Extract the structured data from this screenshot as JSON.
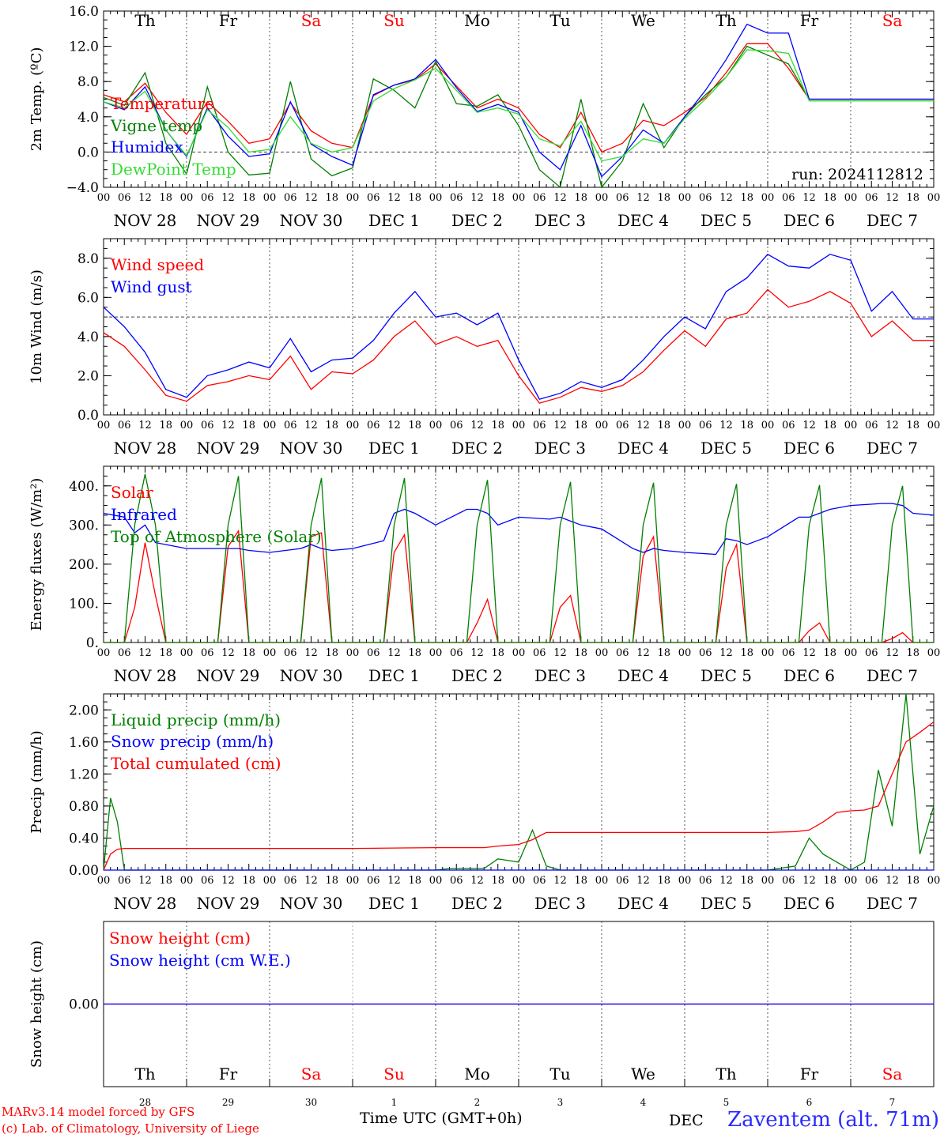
{
  "credits": {
    "line1": "MARv3.14 model forced by GFS",
    "line2": "(c) Lab. of Climatology, University of Liege"
  },
  "x_title": "Time UTC (GMT+0h)",
  "location": "Zaventem (alt. 71m)",
  "run_label": "run: 2024112812",
  "hour_ticks": [
    "00",
    "06",
    "12",
    "18"
  ],
  "date_labels": [
    "NOV 28",
    "NOV 29",
    "NOV 30",
    "DEC  1",
    "DEC  2",
    "DEC  3",
    "DEC  4",
    "DEC  5",
    "DEC  6",
    "DEC  7"
  ],
  "weekdays": [
    {
      "label": "Th",
      "weekend": false
    },
    {
      "label": "Fr",
      "weekend": false
    },
    {
      "label": "Sa",
      "weekend": true
    },
    {
      "label": "Su",
      "weekend": true
    },
    {
      "label": "Mo",
      "weekend": false
    },
    {
      "label": "Tu",
      "weekend": false
    },
    {
      "label": "We",
      "weekend": false
    },
    {
      "label": "Th",
      "weekend": false
    },
    {
      "label": "Fr",
      "weekend": false
    },
    {
      "label": "Sa",
      "weekend": true
    }
  ],
  "bottom_day_numbers": [
    "28",
    "29",
    "30",
    "1",
    "2",
    "3",
    "4",
    "5",
    "6",
    "7"
  ],
  "bottom_month_label": "DEC",
  "colors": {
    "red": "#ff0000",
    "blue": "#0000ff",
    "green": "#007f00",
    "lightgreen": "#33dd33",
    "weekend": "#ff0000",
    "grid": "#808080"
  },
  "chart_data": [
    {
      "type": "line",
      "ylabel": "2m Temp. (ºC)",
      "ylim": [
        -4,
        16
      ],
      "yticks": [
        "−4.0",
        "0.0",
        "4.0",
        "8.0",
        "12.0",
        "16.0"
      ],
      "ytick_values": [
        -4,
        0,
        4,
        8,
        12,
        16
      ],
      "ref_line": 0,
      "x_hours": [
        0,
        6,
        12,
        18,
        24,
        30,
        36,
        42,
        48,
        54,
        60,
        66,
        72,
        78,
        84,
        90,
        96,
        102,
        108,
        114,
        120,
        126,
        132,
        138,
        144,
        150,
        156,
        162,
        168,
        174,
        180,
        186,
        192,
        198,
        204,
        210,
        216,
        222,
        228,
        234,
        240
      ],
      "series": [
        {
          "name": "Temperature",
          "color": "#ff0000",
          "values": [
            6.5,
            5.7,
            7.8,
            4.5,
            2.0,
            5.7,
            3.5,
            1.0,
            1.5,
            5.6,
            2.4,
            1.0,
            0.5,
            6.4,
            7.6,
            8.2,
            10.0,
            7.5,
            5.0,
            6.0,
            5.0,
            2.0,
            0.5,
            4.5,
            0.0,
            1.0,
            3.6,
            3.0,
            4.5,
            6.2,
            9.0,
            12.3,
            12.3,
            9.5,
            6.0,
            6.0,
            6.0,
            6.0,
            6.0,
            6.0,
            6.0
          ]
        },
        {
          "name": "Vigne temp",
          "color": "#007f00",
          "values": [
            6.2,
            5.3,
            9.0,
            1.0,
            -2.5,
            7.4,
            0.0,
            -2.6,
            -2.4,
            8.0,
            -0.8,
            -2.7,
            -1.8,
            8.3,
            7.0,
            5.0,
            10.3,
            5.5,
            5.2,
            6.5,
            3.0,
            -2.0,
            -4.0,
            6.0,
            -4.0,
            -1.0,
            5.5,
            0.5,
            4.0,
            6.5,
            8.5,
            12.0,
            11.0,
            10.0,
            6.0,
            6.0,
            6.0,
            6.0,
            6.0,
            6.0,
            6.0
          ]
        },
        {
          "name": "Humidex",
          "color": "#0000ff",
          "values": [
            5.7,
            4.8,
            7.4,
            2.5,
            -0.5,
            5.0,
            1.8,
            -0.5,
            -0.2,
            5.7,
            0.9,
            -0.5,
            -1.5,
            6.5,
            7.6,
            8.3,
            10.5,
            7.3,
            4.6,
            5.4,
            4.5,
            0.0,
            -2.0,
            3.0,
            -2.8,
            -0.5,
            2.5,
            1.0,
            4.0,
            7.0,
            10.5,
            14.5,
            13.5,
            13.5,
            6.0,
            6.0,
            6.0,
            6.0,
            6.0,
            6.0,
            6.0
          ]
        },
        {
          "name": "DewPoint Temp",
          "color": "#33dd33",
          "values": [
            5.7,
            5.0,
            6.9,
            2.5,
            -0.4,
            4.8,
            2.8,
            0.0,
            0.3,
            4.0,
            1.0,
            0.0,
            0.5,
            5.8,
            7.2,
            8.2,
            9.5,
            7.0,
            4.5,
            5.0,
            4.3,
            1.5,
            0.7,
            3.5,
            -1.0,
            -0.5,
            1.5,
            1.0,
            3.8,
            6.0,
            8.5,
            11.6,
            11.5,
            11.2,
            5.8,
            5.8,
            5.8,
            5.8,
            5.8,
            5.8,
            5.8
          ]
        }
      ]
    },
    {
      "type": "line",
      "ylabel": "10m Wind (m/s)",
      "ylim": [
        0,
        9
      ],
      "yticks": [
        "0.0",
        "2.0",
        "4.0",
        "6.0",
        "8.0"
      ],
      "ytick_values": [
        0,
        2,
        4,
        6,
        8
      ],
      "ref_line": 5,
      "x_hours": [
        0,
        6,
        12,
        18,
        24,
        30,
        36,
        42,
        48,
        54,
        60,
        66,
        72,
        78,
        84,
        90,
        96,
        102,
        108,
        114,
        120,
        126,
        132,
        138,
        144,
        150,
        156,
        162,
        168,
        174,
        180,
        186,
        192,
        198,
        204,
        210,
        216,
        222,
        228,
        234,
        240
      ],
      "series": [
        {
          "name": "Wind speed",
          "color": "#ff0000",
          "values": [
            4.2,
            3.5,
            2.3,
            1.0,
            0.7,
            1.5,
            1.7,
            2.0,
            1.8,
            3.0,
            1.3,
            2.2,
            2.1,
            2.8,
            4.0,
            4.8,
            3.6,
            4.0,
            3.5,
            3.8,
            2.0,
            0.6,
            0.9,
            1.4,
            1.2,
            1.5,
            2.2,
            3.3,
            4.3,
            3.5,
            4.9,
            5.2,
            6.4,
            5.5,
            5.8,
            6.3,
            5.7,
            4.0,
            4.8,
            3.8,
            3.8
          ]
        },
        {
          "name": "Wind gust",
          "color": "#0000ff",
          "values": [
            5.5,
            4.5,
            3.2,
            1.3,
            0.9,
            2.0,
            2.3,
            2.7,
            2.4,
            3.9,
            2.2,
            2.8,
            2.9,
            3.8,
            5.2,
            6.3,
            5.0,
            5.2,
            4.6,
            5.2,
            2.8,
            0.8,
            1.1,
            1.7,
            1.4,
            1.8,
            2.8,
            4.0,
            5.0,
            4.4,
            6.3,
            7.0,
            8.2,
            7.6,
            7.5,
            8.2,
            7.9,
            5.3,
            6.3,
            4.9,
            4.9
          ]
        }
      ]
    },
    {
      "type": "line",
      "ylabel": "Energy fluxes (W/m²)",
      "ylim": [
        0,
        450
      ],
      "yticks": [
        "0.",
        "100.",
        "200.",
        "300.",
        "400."
      ],
      "ytick_values": [
        0,
        100,
        200,
        300,
        400
      ],
      "x_hours": [
        0,
        6,
        9,
        12,
        15,
        18,
        24,
        33,
        36,
        39,
        42,
        48,
        57,
        60,
        63,
        66,
        72,
        81,
        84,
        87,
        90,
        96,
        105,
        108,
        111,
        114,
        120,
        129,
        132,
        135,
        138,
        144,
        153,
        156,
        159,
        162,
        168,
        177,
        180,
        183,
        186,
        192,
        201,
        204,
        207,
        210,
        216,
        225,
        228,
        231,
        234,
        240
      ],
      "series": [
        {
          "name": "Solar",
          "color": "#ff0000",
          "values": [
            0,
            0,
            90,
            255,
            120,
            0,
            0,
            0,
            245,
            285,
            0,
            0,
            0,
            270,
            280,
            0,
            0,
            0,
            230,
            275,
            0,
            0,
            0,
            50,
            110,
            0,
            0,
            0,
            90,
            120,
            0,
            0,
            0,
            220,
            270,
            0,
            0,
            0,
            190,
            250,
            0,
            0,
            0,
            30,
            50,
            0,
            0,
            0,
            10,
            25,
            0,
            0
          ]
        },
        {
          "name": "Infrared",
          "color": "#0000ff",
          "values": [
            330,
            320,
            280,
            300,
            255,
            250,
            240,
            240,
            240,
            240,
            235,
            230,
            240,
            250,
            240,
            235,
            240,
            260,
            330,
            340,
            330,
            300,
            340,
            340,
            330,
            300,
            320,
            315,
            320,
            310,
            300,
            290,
            240,
            230,
            240,
            235,
            230,
            225,
            265,
            260,
            250,
            270,
            320,
            320,
            330,
            340,
            350,
            355,
            355,
            350,
            330,
            325
          ]
        },
        {
          "name": "Top of Atmosphere (Solar)",
          "color": "#007f00",
          "values": [
            0,
            0,
            300,
            430,
            300,
            0,
            0,
            0,
            300,
            425,
            0,
            0,
            0,
            300,
            420,
            0,
            0,
            0,
            300,
            420,
            0,
            0,
            0,
            300,
            415,
            0,
            0,
            0,
            300,
            410,
            0,
            0,
            0,
            300,
            408,
            0,
            0,
            0,
            300,
            405,
            0,
            0,
            0,
            300,
            402,
            0,
            0,
            0,
            300,
            400,
            0,
            0
          ]
        }
      ]
    },
    {
      "type": "line",
      "ylabel": "Precip (mm/h)",
      "ylim": [
        0,
        2.2
      ],
      "yticks": [
        "0.00",
        "0.40",
        "0.80",
        "1.20",
        "1.60",
        "2.00"
      ],
      "ytick_values": [
        0,
        0.4,
        0.8,
        1.2,
        1.6,
        2.0
      ],
      "x_hours": [
        0,
        2,
        4,
        6,
        10,
        24,
        48,
        72,
        96,
        100,
        110,
        114,
        120,
        124,
        128,
        132,
        144,
        168,
        192,
        200,
        204,
        208,
        212,
        216,
        220,
        224,
        228,
        232,
        236,
        240
      ],
      "series": [
        {
          "name": "Liquid precip (mm/h)",
          "color": "#007f00",
          "values": [
            0,
            0.9,
            0.6,
            0,
            0,
            0,
            0,
            0,
            0,
            0.02,
            0.02,
            0.14,
            0.1,
            0.5,
            0.05,
            0,
            0,
            0,
            0,
            0.05,
            0.4,
            0.2,
            0.1,
            0,
            0.1,
            1.25,
            0.55,
            2.2,
            0.2,
            0.8
          ]
        },
        {
          "name": "Snow precip (mm/h)",
          "color": "#0000ff",
          "values": [
            0,
            0,
            0,
            0,
            0,
            0,
            0,
            0,
            0,
            0,
            0,
            0,
            0,
            0,
            0,
            0,
            0,
            0,
            0,
            0,
            0,
            0,
            0,
            0,
            0,
            0,
            0,
            0,
            0,
            0
          ]
        },
        {
          "name": "Total cumulated (cm)",
          "color": "#ff0000",
          "values": [
            0,
            0.2,
            0.26,
            0.27,
            0.27,
            0.27,
            0.27,
            0.27,
            0.28,
            0.28,
            0.28,
            0.3,
            0.32,
            0.38,
            0.47,
            0.47,
            0.47,
            0.47,
            0.47,
            0.48,
            0.5,
            0.6,
            0.72,
            0.74,
            0.75,
            0.8,
            1.2,
            1.6,
            1.72,
            1.85
          ]
        }
      ]
    },
    {
      "type": "line",
      "ylabel": "Snow height (cm)",
      "ylim": [
        -1,
        1
      ],
      "yticks": [
        "0.00"
      ],
      "ytick_values": [
        0
      ],
      "x_hours": [
        0,
        240
      ],
      "series": [
        {
          "name": "Snow height (cm)",
          "color": "#ff0000",
          "values": [
            0,
            0
          ]
        },
        {
          "name": "Snow height (cm W.E.)",
          "color": "#0000ff",
          "values": [
            0,
            0
          ]
        }
      ]
    }
  ]
}
